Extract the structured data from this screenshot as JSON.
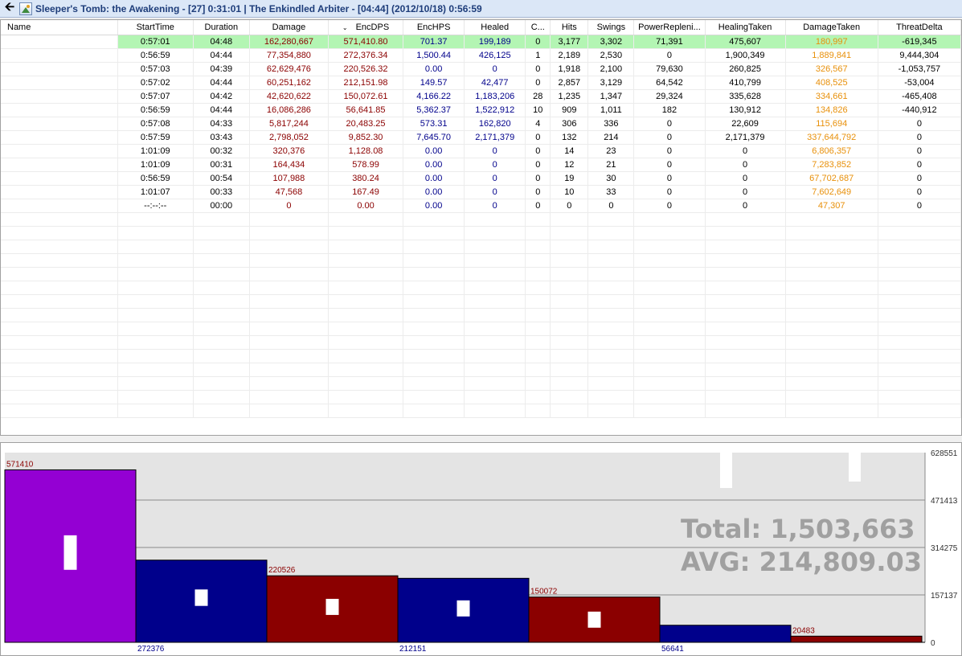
{
  "title": "Sleeper's Tomb: the Awakening - [27] 0:31:01  |  The Enkindled Arbiter - [04:44] (2012/10/18) 0:56:59",
  "columns": [
    "Name",
    "StartTime",
    "Duration",
    "Damage",
    "EncDPS",
    "EncHPS",
    "Healed",
    "C...",
    "Hits",
    "Swings",
    "PowerRepleni...",
    "HealingTaken",
    "DamageTaken",
    "ThreatDelta"
  ],
  "rows": [
    [
      "",
      "0:57:01",
      "04:48",
      "162,280,667",
      "571,410.80",
      "701.37",
      "199,189",
      "0",
      "3,177",
      "3,302",
      "71,391",
      "475,607",
      "180,997",
      "-619,345"
    ],
    [
      "",
      "0:56:59",
      "04:44",
      "77,354,880",
      "272,376.34",
      "1,500.44",
      "426,125",
      "1",
      "2,189",
      "2,530",
      "0",
      "1,900,349",
      "1,889,841",
      "9,444,304"
    ],
    [
      "",
      "0:57:03",
      "04:39",
      "62,629,476",
      "220,526.32",
      "0.00",
      "0",
      "0",
      "1,918",
      "2,100",
      "79,630",
      "260,825",
      "326,567",
      "-1,053,757"
    ],
    [
      "",
      "0:57:02",
      "04:44",
      "60,251,162",
      "212,151.98",
      "149.57",
      "42,477",
      "0",
      "2,857",
      "3,129",
      "64,542",
      "410,799",
      "408,525",
      "-53,004"
    ],
    [
      "",
      "0:57:07",
      "04:42",
      "42,620,622",
      "150,072.61",
      "4,166.22",
      "1,183,206",
      "28",
      "1,235",
      "1,347",
      "29,324",
      "335,628",
      "334,661",
      "-465,408"
    ],
    [
      "",
      "0:56:59",
      "04:44",
      "16,086,286",
      "56,641.85",
      "5,362.37",
      "1,522,912",
      "10",
      "909",
      "1,011",
      "182",
      "130,912",
      "134,826",
      "-440,912"
    ],
    [
      "",
      "0:57:08",
      "04:33",
      "5,817,244",
      "20,483.25",
      "573.31",
      "162,820",
      "4",
      "306",
      "336",
      "0",
      "22,609",
      "115,694",
      "0"
    ],
    [
      "",
      "0:57:59",
      "03:43",
      "2,798,052",
      "9,852.30",
      "7,645.70",
      "2,171,379",
      "0",
      "132",
      "214",
      "0",
      "2,171,379",
      "337,644,792",
      "0"
    ],
    [
      "",
      "1:01:09",
      "00:32",
      "320,376",
      "1,128.08",
      "0.00",
      "0",
      "0",
      "14",
      "23",
      "0",
      "0",
      "6,806,357",
      "0"
    ],
    [
      "",
      "1:01:09",
      "00:31",
      "164,434",
      "578.99",
      "0.00",
      "0",
      "0",
      "12",
      "21",
      "0",
      "0",
      "7,283,852",
      "0"
    ],
    [
      "",
      "0:56:59",
      "00:54",
      "107,988",
      "380.24",
      "0.00",
      "0",
      "0",
      "19",
      "30",
      "0",
      "0",
      "67,702,687",
      "0"
    ],
    [
      "",
      "1:01:07",
      "00:33",
      "47,568",
      "167.49",
      "0.00",
      "0",
      "0",
      "10",
      "33",
      "0",
      "0",
      "7,602,649",
      "0"
    ],
    [
      "",
      "--:--:--",
      "00:00",
      "0",
      "0.00",
      "0.00",
      "0",
      "0",
      "0",
      "0",
      "0",
      "0",
      "47,307",
      "0"
    ]
  ],
  "selected_row": 0,
  "sort_column": "EncDPS",
  "chart_data": {
    "type": "bar",
    "values": [
      571410,
      272376,
      220526,
      212151,
      150072,
      56641,
      20483
    ],
    "bar_labels": [
      "571410",
      "272376",
      "220526",
      "212151",
      "150072",
      "56641",
      "20483"
    ],
    "label_positions": [
      "top",
      "bottom",
      "top",
      "bottom",
      "top",
      "bottom",
      "top"
    ],
    "colors": [
      "#9400d3",
      "#00008b",
      "#8b0000",
      "#00008b",
      "#8b0000",
      "#00008b",
      "#8b0000"
    ],
    "yticks": [
      "628551",
      "471413",
      "314275",
      "157137",
      "0"
    ],
    "ylim": [
      0,
      628551
    ],
    "grid": true,
    "total_label": "Total: 1,503,663",
    "avg_label": "AVG: 214,809.03"
  },
  "colors": {
    "title_bg": "#dbe7f7",
    "title_text": "#1e3d7a",
    "selected_row": "#b3f5b3",
    "damage": "#8b0000",
    "healing": "#00008b",
    "damage_taken": "#e8900a"
  }
}
